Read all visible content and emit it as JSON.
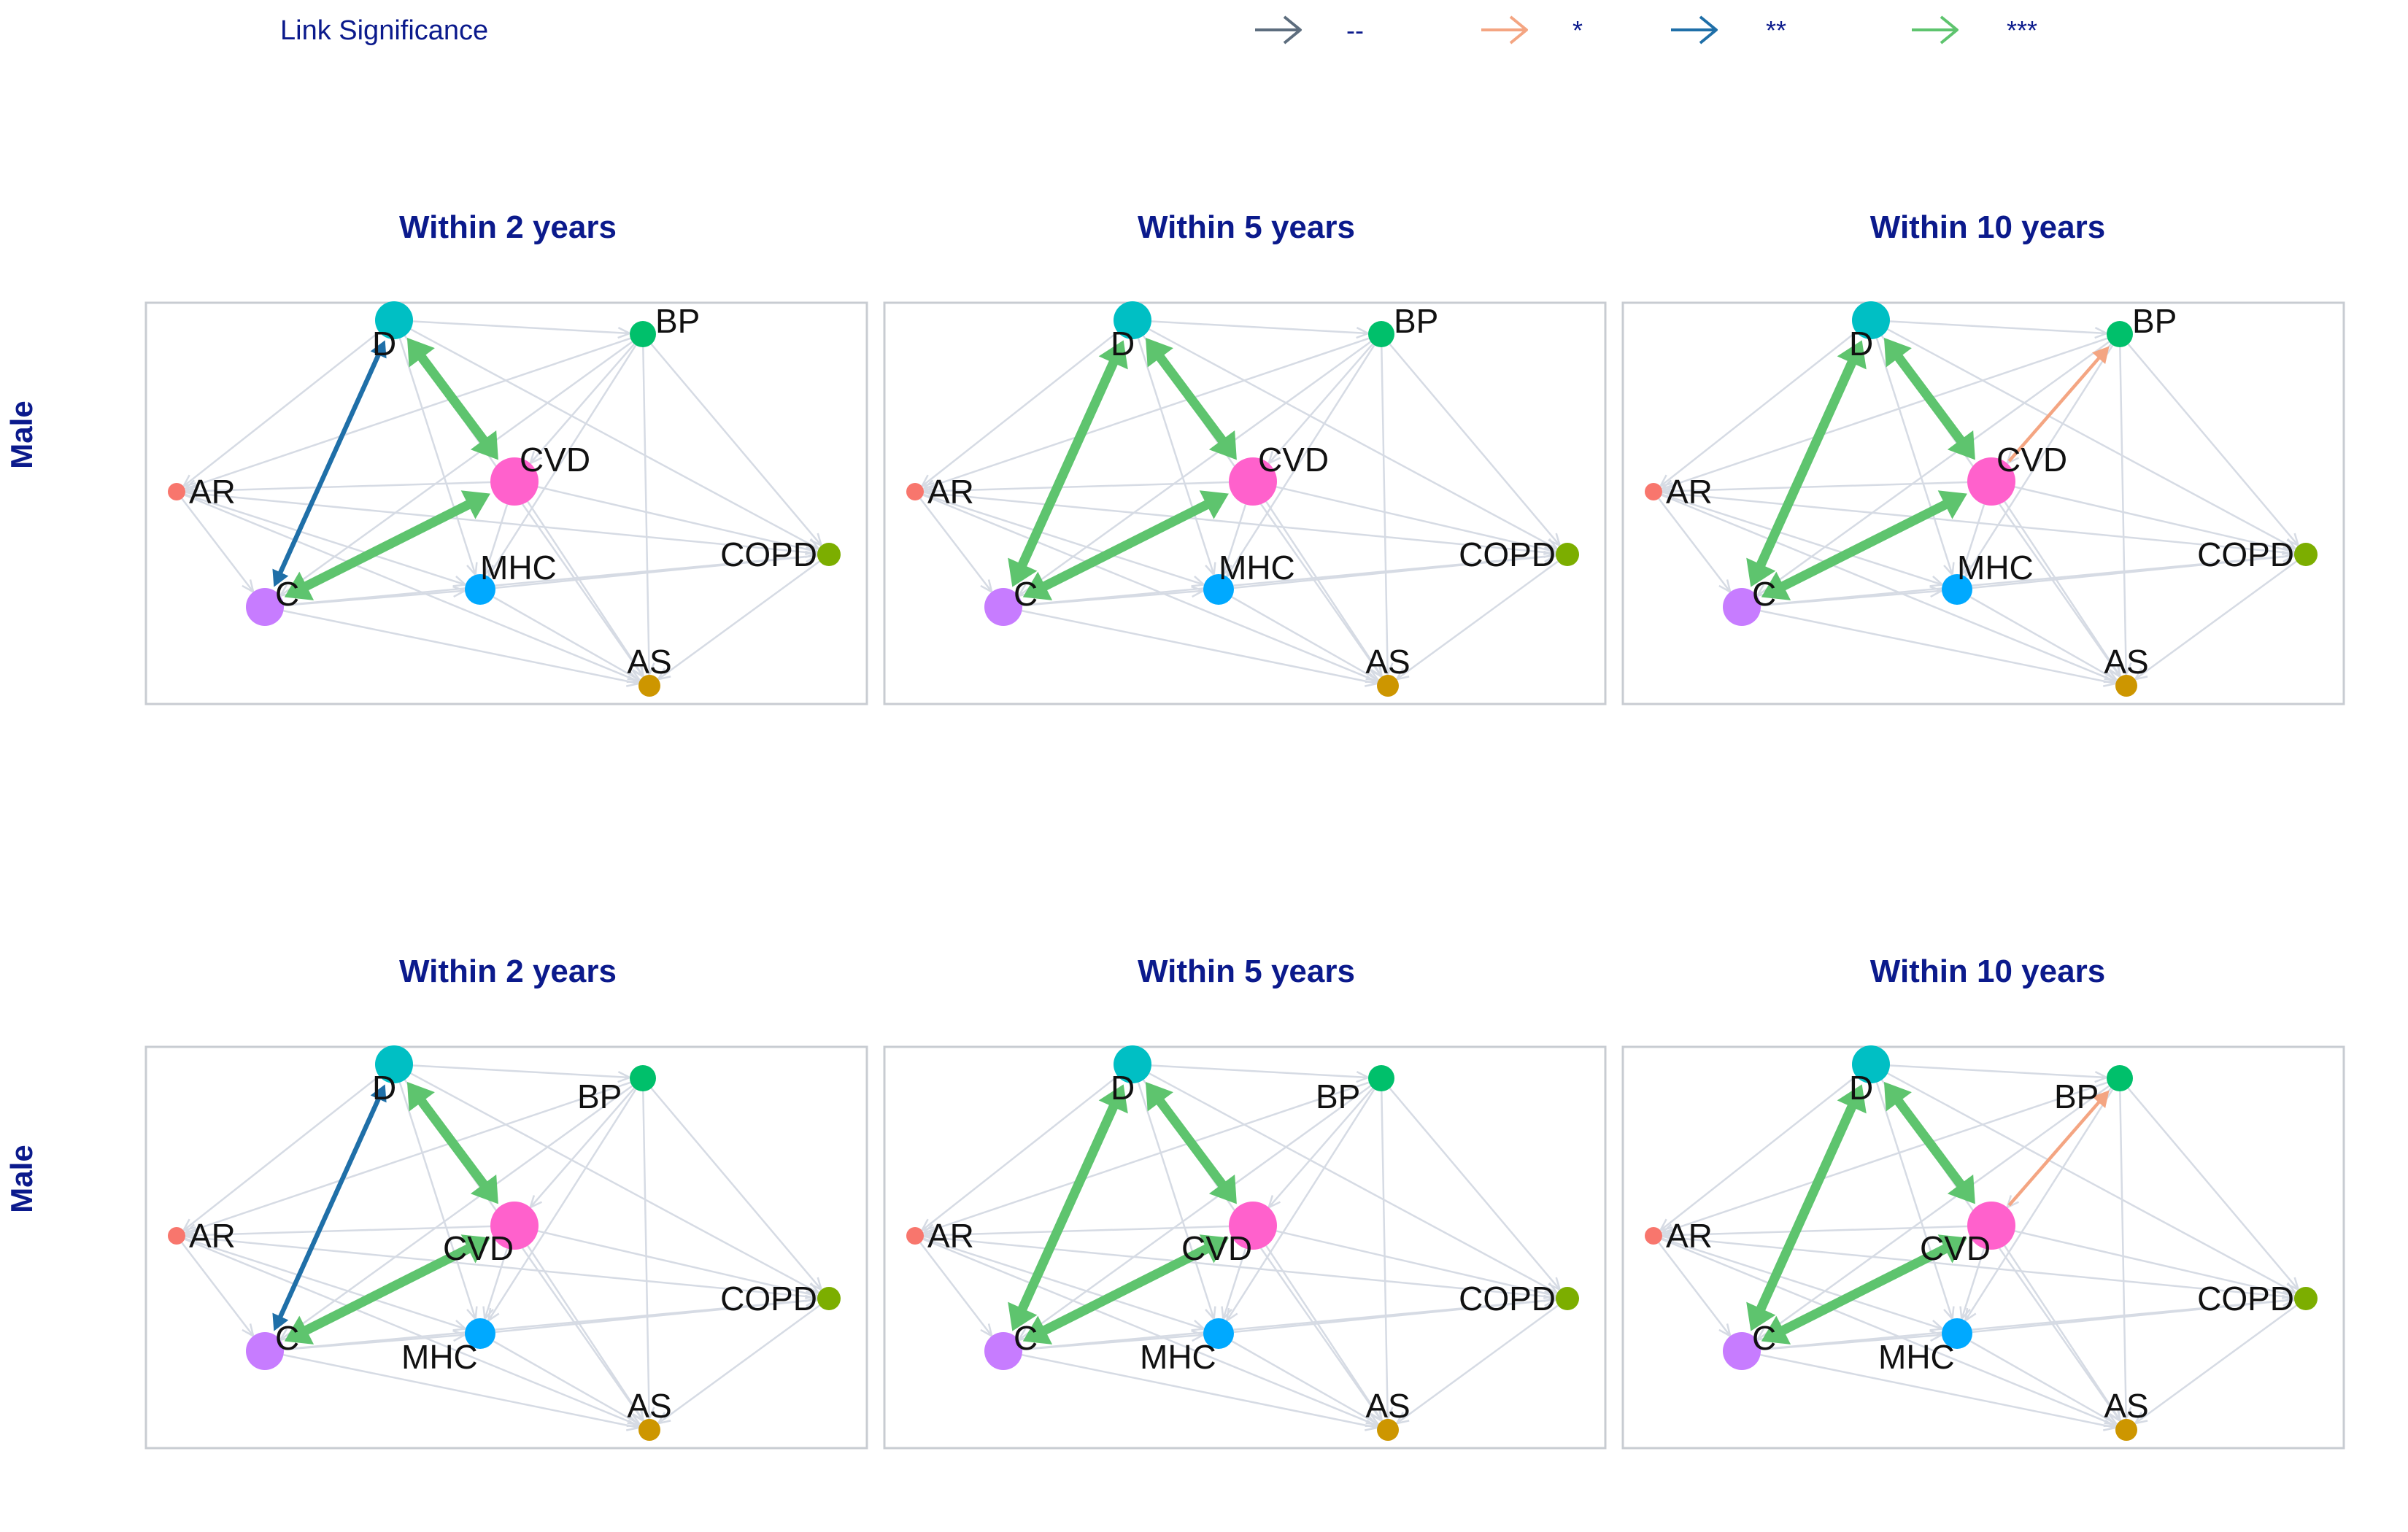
{
  "legend": {
    "title": "Link Significance",
    "items": [
      {
        "label": "--",
        "color": "#5d6d7e"
      },
      {
        "label": "*",
        "color": "#f4a582"
      },
      {
        "label": "**",
        "color": "#1f6fa8"
      },
      {
        "label": "***",
        "color": "#5ec46e"
      }
    ]
  },
  "background_edge_color": "#d6dbe4",
  "nodes": [
    {
      "id": "D",
      "color": "#00bfc4"
    },
    {
      "id": "BP",
      "color": "#00c06b"
    },
    {
      "id": "CVD",
      "color": "#ff61cc"
    },
    {
      "id": "AR",
      "color": "#f8766d"
    },
    {
      "id": "C",
      "color": "#c77cff"
    },
    {
      "id": "MHC",
      "color": "#00a9ff"
    },
    {
      "id": "COPD",
      "color": "#7cae00"
    },
    {
      "id": "AS",
      "color": "#cd9600"
    }
  ],
  "rows": [
    {
      "label": "Male",
      "panels": [
        {
          "title": "Within 2 years",
          "edges": [
            {
              "from": "D",
              "to": "C",
              "sig": "**",
              "bidirectional": true
            },
            {
              "from": "D",
              "to": "CVD",
              "sig": "***",
              "bidirectional": true
            },
            {
              "from": "C",
              "to": "CVD",
              "sig": "***",
              "bidirectional": true
            }
          ]
        },
        {
          "title": "Within 5 years",
          "edges": [
            {
              "from": "D",
              "to": "C",
              "sig": "***",
              "bidirectional": true
            },
            {
              "from": "D",
              "to": "CVD",
              "sig": "***",
              "bidirectional": true
            },
            {
              "from": "C",
              "to": "CVD",
              "sig": "***",
              "bidirectional": true
            }
          ]
        },
        {
          "title": "Within 10 years",
          "edges": [
            {
              "from": "D",
              "to": "C",
              "sig": "***",
              "bidirectional": true
            },
            {
              "from": "D",
              "to": "CVD",
              "sig": "***",
              "bidirectional": true
            },
            {
              "from": "C",
              "to": "CVD",
              "sig": "***",
              "bidirectional": true
            },
            {
              "from": "CVD",
              "to": "BP",
              "sig": "*",
              "bidirectional": false
            }
          ]
        }
      ]
    },
    {
      "label": "Male",
      "panels": [
        {
          "title": "Within 2 years",
          "edges": [
            {
              "from": "D",
              "to": "C",
              "sig": "**",
              "bidirectional": true
            },
            {
              "from": "D",
              "to": "CVD",
              "sig": "***",
              "bidirectional": true
            },
            {
              "from": "C",
              "to": "CVD",
              "sig": "***",
              "bidirectional": true
            }
          ]
        },
        {
          "title": "Within 5 years",
          "edges": [
            {
              "from": "D",
              "to": "C",
              "sig": "***",
              "bidirectional": true
            },
            {
              "from": "D",
              "to": "CVD",
              "sig": "***",
              "bidirectional": true
            },
            {
              "from": "C",
              "to": "CVD",
              "sig": "***",
              "bidirectional": true
            }
          ]
        },
        {
          "title": "Within 10 years",
          "edges": [
            {
              "from": "D",
              "to": "C",
              "sig": "***",
              "bidirectional": true
            },
            {
              "from": "D",
              "to": "CVD",
              "sig": "***",
              "bidirectional": true
            },
            {
              "from": "C",
              "to": "CVD",
              "sig": "***",
              "bidirectional": true
            },
            {
              "from": "CVD",
              "to": "BP",
              "sig": "*",
              "bidirectional": false
            }
          ]
        }
      ]
    }
  ]
}
